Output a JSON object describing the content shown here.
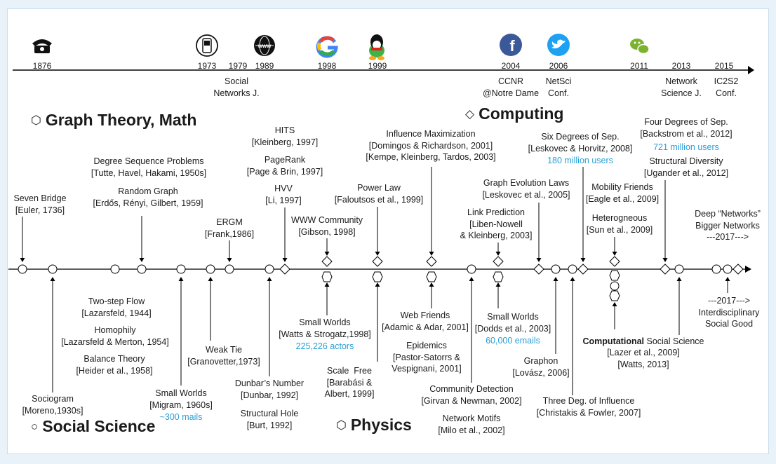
{
  "headings": {
    "graph_theory": "Graph Theory, Math",
    "computing": "Computing",
    "social_science": "Social Science",
    "physics": "Physics"
  },
  "milestones": [
    {
      "year": "1876",
      "icon": "telephone-icon"
    },
    {
      "year": "1973",
      "icon": "mobile-phone-icon"
    },
    {
      "year": "1979"
    },
    {
      "year": "1989",
      "icon": "www-globe-icon"
    },
    {
      "year": "1998",
      "icon": "google-logo-icon"
    },
    {
      "year": "1999",
      "icon": "qq-penguin-icon"
    },
    {
      "year": "2004",
      "icon": "facebook-icon"
    },
    {
      "year": "2006",
      "icon": "twitter-icon"
    },
    {
      "year": "2011",
      "icon": "wechat-icon"
    },
    {
      "year": "2013"
    },
    {
      "year": "2015"
    }
  ],
  "milestone_labels": {
    "social_networks_journal": "Social\nNetworks J.",
    "ccnr": "CCNR\n@Notre Dame",
    "netsci": "NetSci\nConf.",
    "network_science_journal": "Network\nScience J.",
    "ic2s2": "IC2S2\nConf."
  },
  "above": {
    "seven_bridge": "Seven Bridge\n[Euler, 1736]",
    "degree_sequence": "Degree Sequence Problems\n[Tutte, Havel, Hakami, 1950s]",
    "random_graph": "Random Graph\n[Erdős, Rényi, Gilbert, 1959]",
    "ergm": "ERGM\n[Frank,1986]",
    "hits": "HITS\n[Kleinberg, 1997]",
    "pagerank": "PageRank\n[Page & Brin, 1997]",
    "hvv": "HVV\n[Li, 1997]",
    "www_community": "WWW Community\n[Gibson, 1998]",
    "power_law": "Power Law\n[Faloutsos et al., 1999]",
    "influence_max": "Influence Maximization\n[Domingos & Richardson, 2001]\n[Kempe, Kleinberg, Tardos, 2003]",
    "link_prediction": "Link Prediction\n[Liben-Nowell\n& Kleinberg, 2003]",
    "graph_evolution": "Graph Evolution Laws\n[Leskovec et al., 2005]",
    "six_degrees": "Six Degrees of Sep.\n[Leskovec & Horvitz, 2008]",
    "six_degrees_users": "180 million users",
    "four_degrees": "Four Degrees of Sep.\n[Backstrom et al., 2012]",
    "four_degrees_users": "721 million users",
    "structural_diversity": "Structural Diversity\n[Ugander et al., 2012]",
    "mobility_friends": "Mobility Friends\n[Eagle et al., 2009]",
    "heterogeneous": "Heterogneous\n[Sun et al., 2009]",
    "deep_networks": "Deep “Networks”\nBigger Networks\n---2017--->"
  },
  "below": {
    "sociogram": "Sociogram\n[Moreno,1930s]",
    "two_step_flow": "Two-step Flow\n[Lazarsfeld, 1944]",
    "homophily": "Homophily\n[Lazarsfeld & Merton, 1954]",
    "balance_theory": "Balance Theory\n[Heider et al., 1958]",
    "small_worlds_migram": "Small Worlds\n[Migram, 1960s]",
    "small_worlds_migram_count": "~300 mails",
    "weak_tie": "Weak Tie\n[Granovetter,1973]",
    "dunbar": "Dunbar’s Number\n[Dunbar, 1992]",
    "structural_hole": "Structural Hole\n[Burt, 1992]",
    "small_worlds_ws": "Small Worlds\n[Watts & Strogatz,1998]",
    "small_worlds_ws_count": "225,226 actors",
    "scale_free": "Scale  Free\n[Barabási &\nAlbert, 1999]",
    "web_friends": "Web Friends\n[Adamic & Adar, 2001]",
    "epidemics": "Epidemics\n[Pastor-Satorrs &\nVespignani, 2001]",
    "community_detection": "Community Detection\n[Girvan & Newman, 2002]",
    "network_motifs": "Network Motifs\n[Milo et al., 2002]",
    "small_worlds_dodds": "Small Worlds\n[Dodds et al., 2003]",
    "small_worlds_dodds_count": "60,000 emails",
    "graphon": "Graphon\n[Lovász, 2006]",
    "three_degrees": "Three Deg. of Influence\n[Christakis & Fowler, 2007]",
    "css_bold": "Computational",
    "css_rest": " Social Science",
    "css_refs": "[Lazer et al., 2009]\n[Watts, 2013]",
    "interdisciplinary": "---2017--->\nInterdisciplinary\nSocial Good"
  },
  "colors": {
    "accent_blue": "#2a9fd8",
    "frame_border": "#c7dced",
    "background": "#e9f2f8",
    "facebook": "#3b5998",
    "twitter": "#1da1f2",
    "wechat": "#7bb32e"
  }
}
